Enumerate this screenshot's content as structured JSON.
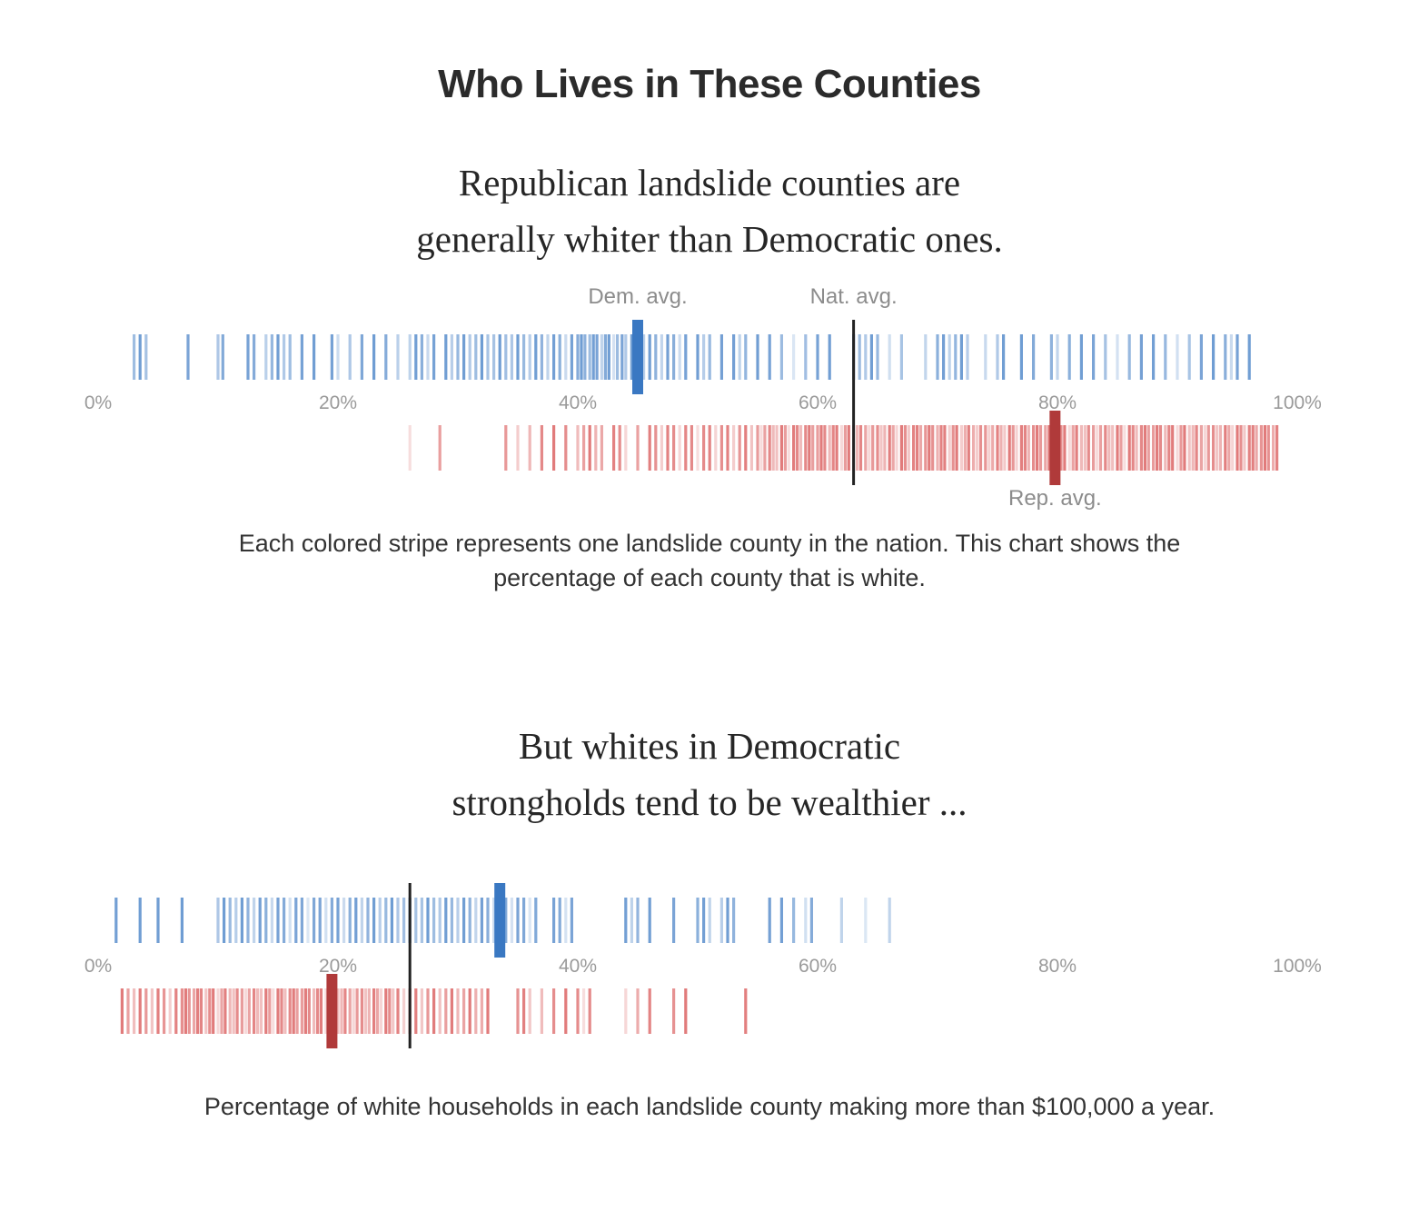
{
  "title": "Who Lives in These Counties",
  "chart_data": [
    {
      "type": "strip",
      "title_lines": [
        "Republican landslide counties are",
        "generally whiter than Democratic ones."
      ],
      "caption_lines": [
        "Each colored stripe represents one landslide county in the nation. This chart shows the",
        "percentage of each county that is white."
      ],
      "xlim": [
        0,
        100
      ],
      "ticks": [
        "0%",
        "20%",
        "40%",
        "60%",
        "80%",
        "100%"
      ],
      "tick_values": [
        0,
        20,
        40,
        60,
        80,
        100
      ],
      "colors": {
        "dem": "#3a78c2",
        "rep": "#d64a4a",
        "dem_avg": "#3a78c2",
        "rep_avg": "#b03a3a",
        "nat_avg": "#222222",
        "tick": "#9a9a9a",
        "avg_label": "#8c8c8c"
      },
      "series": [
        {
          "values": [
            3,
            3.5,
            4,
            7.5,
            10,
            10.4,
            12.5,
            13,
            14,
            14.5,
            15,
            15.5,
            16,
            17,
            18,
            19.5,
            20,
            21,
            22,
            23,
            24,
            25,
            26,
            26.5,
            27,
            27.5,
            28,
            29,
            29.5,
            30,
            30.5,
            31,
            31.5,
            32,
            32.5,
            33,
            33.5,
            34,
            34.5,
            35,
            35.5,
            36,
            36.5,
            37,
            37.5,
            38,
            38.5,
            39,
            39.5,
            40,
            40.3,
            40.6,
            41,
            41.3,
            41.6,
            42,
            42.3,
            42.6,
            43,
            43.3,
            43.7,
            44,
            44.5,
            45,
            45.5,
            46,
            46.5,
            47,
            47.5,
            48,
            48.5,
            49,
            50,
            50.5,
            51,
            52,
            53,
            53.5,
            54,
            55,
            56,
            57,
            58,
            59,
            60,
            61,
            63,
            63.5,
            64,
            64.5,
            65,
            66,
            67,
            69,
            70,
            70.5,
            71,
            71.5,
            72,
            72.5,
            74,
            75,
            75.5,
            77,
            78,
            79.5,
            80,
            81,
            82,
            83,
            84,
            85,
            86,
            87,
            88,
            89,
            90,
            91,
            92,
            93,
            94,
            94.5,
            95,
            96
          ]
        },
        {
          "values": [
            26,
            28.5,
            34,
            35,
            36,
            37,
            38,
            39,
            40,
            40.5,
            41,
            41.5,
            42,
            43,
            43.5,
            44,
            45,
            46,
            46.5,
            47,
            47.5,
            48,
            48.5,
            49,
            49.5,
            50,
            50.5,
            51,
            51.5,
            52,
            52.5,
            53,
            53.5,
            54,
            54.5,
            55,
            55.3,
            55.6,
            56,
            56.3,
            56.6,
            57,
            57.3,
            57.6,
            58,
            58.3,
            58.6,
            59,
            59.3,
            59.6,
            60,
            60.3,
            60.6,
            61,
            61.3,
            61.6,
            62,
            62.3,
            62.6,
            63,
            63.3,
            63.6,
            64,
            64.3,
            64.6,
            65,
            65.3,
            65.6,
            66,
            66.3,
            66.6,
            67,
            67.3,
            67.6,
            68,
            68.3,
            68.6,
            69,
            69.3,
            69.6,
            70,
            70.3,
            70.6,
            71,
            71.3,
            71.6,
            72,
            72.3,
            72.6,
            73,
            73.3,
            73.6,
            74,
            74.3,
            74.6,
            75,
            75.3,
            75.6,
            76,
            76.3,
            76.6,
            77,
            77.3,
            77.6,
            78,
            78.3,
            78.6,
            79,
            79.3,
            79.6,
            80,
            80.3,
            80.6,
            81,
            81.3,
            81.6,
            82,
            82.3,
            82.6,
            83,
            83.3,
            83.6,
            84,
            84.3,
            84.6,
            85,
            85.3,
            85.6,
            86,
            86.3,
            86.6,
            87,
            87.3,
            87.6,
            88,
            88.3,
            88.6,
            89,
            89.3,
            89.6,
            90,
            90.3,
            90.6,
            91,
            91.3,
            91.6,
            92,
            92.3,
            92.6,
            93,
            93.3,
            93.6,
            94,
            94.3,
            94.6,
            95,
            95.3,
            95.6,
            96,
            96.3,
            96.6,
            97,
            97.3,
            97.6,
            98,
            98.3
          ]
        }
      ],
      "averages": {
        "dem": {
          "label": "Dem. avg.",
          "value": 45
        },
        "nat": {
          "label": "Nat. avg.",
          "value": 63
        },
        "rep": {
          "label": "Rep. avg.",
          "value": 79.8
        }
      }
    },
    {
      "type": "strip",
      "title_lines": [
        "But whites in Democratic",
        "strongholds tend to be wealthier ..."
      ],
      "caption_lines": [
        "Percentage of white households in each landslide county making more than $100,000 a year."
      ],
      "xlim": [
        0,
        100
      ],
      "ticks": [
        "0%",
        "20%",
        "40%",
        "60%",
        "80%",
        "100%"
      ],
      "tick_values": [
        0,
        20,
        40,
        60,
        80,
        100
      ],
      "colors": {
        "dem": "#3a78c2",
        "rep": "#d64a4a",
        "dem_avg": "#3a78c2",
        "rep_avg": "#b03a3a",
        "nat_avg": "#222222",
        "tick": "#9a9a9a"
      },
      "series": [
        {
          "values": [
            1.5,
            3.5,
            5,
            7,
            10,
            10.5,
            11,
            11.5,
            12,
            12.5,
            13,
            13.5,
            14,
            14.5,
            15,
            15.5,
            16,
            16.5,
            17,
            17.5,
            18,
            18.5,
            19,
            19.5,
            20,
            20.5,
            21,
            21.5,
            22,
            22.5,
            23,
            23.5,
            24,
            24.5,
            25,
            25.5,
            26,
            26.5,
            27,
            27.5,
            28,
            28.5,
            29,
            29.5,
            30,
            30.5,
            31,
            31.5,
            32,
            32.5,
            33,
            33.5,
            34,
            34.5,
            35,
            35.5,
            36,
            36.5,
            38,
            38.5,
            39,
            39.5,
            44,
            44.5,
            45,
            46,
            48,
            50,
            50.5,
            51,
            52,
            52.5,
            53,
            56,
            57,
            58,
            59,
            59.5,
            62,
            64,
            66
          ]
        },
        {
          "values": [
            2,
            2.5,
            3,
            3.5,
            4,
            4.5,
            5,
            5.5,
            6,
            6.5,
            7,
            7.3,
            7.6,
            8,
            8.3,
            8.6,
            9,
            9.3,
            9.6,
            10,
            10.3,
            10.6,
            11,
            11.3,
            11.6,
            12,
            12.3,
            12.6,
            13,
            13.3,
            13.6,
            14,
            14.3,
            14.6,
            15,
            15.3,
            15.6,
            16,
            16.3,
            16.6,
            17,
            17.3,
            17.6,
            18,
            18.3,
            18.6,
            19,
            19.3,
            19.6,
            20,
            20.3,
            20.6,
            21,
            21.3,
            21.6,
            22,
            22.3,
            22.6,
            23,
            23.3,
            23.6,
            24,
            24.3,
            24.6,
            25,
            25.5,
            26,
            26.5,
            27,
            27.5,
            28,
            28.5,
            29,
            29.5,
            30,
            30.5,
            31,
            31.5,
            32,
            32.5,
            35,
            35.5,
            36,
            37,
            38,
            39,
            40,
            40.5,
            41,
            44,
            45,
            46,
            48,
            49,
            54
          ]
        }
      ],
      "averages": {
        "dem": {
          "value": 33.5
        },
        "nat": {
          "value": 26
        },
        "rep": {
          "value": 19.5
        }
      }
    }
  ]
}
